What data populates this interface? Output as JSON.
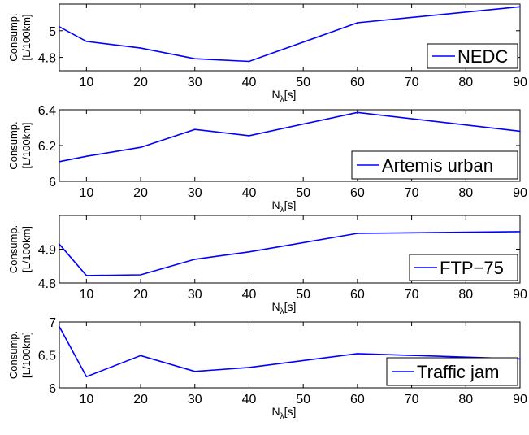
{
  "chart_data": [
    {
      "type": "line",
      "legend": "NEDC",
      "legend_location": "bottom-right",
      "ylabel": [
        "Consump.",
        "[L/100km]"
      ],
      "xlabel": {
        "main": "N",
        "sub": "λ",
        "unit": "[s]"
      },
      "xlim": [
        5,
        90
      ],
      "ylim": [
        4.7,
        5.2
      ],
      "xticks": [
        10,
        20,
        30,
        40,
        50,
        60,
        70,
        80,
        90
      ],
      "yticks": [
        4.8,
        5
      ],
      "x": [
        5,
        10,
        20,
        30,
        40,
        60,
        90
      ],
      "y": [
        5.03,
        4.92,
        4.87,
        4.79,
        4.77,
        5.06,
        5.18
      ],
      "color": "#0000ff"
    },
    {
      "type": "line",
      "legend": "Artemis urban",
      "legend_location": "bottom-right",
      "ylabel": [
        "Consump.",
        "[L/100km]"
      ],
      "xlabel": {
        "main": "N",
        "sub": "λ",
        "unit": "[s]"
      },
      "xlim": [
        5,
        90
      ],
      "ylim": [
        6,
        6.4
      ],
      "xticks": [
        10,
        20,
        30,
        40,
        50,
        60,
        70,
        80,
        90
      ],
      "yticks": [
        6,
        6.2,
        6.4
      ],
      "x": [
        5,
        10,
        20,
        30,
        40,
        60,
        90
      ],
      "y": [
        6.11,
        6.14,
        6.19,
        6.29,
        6.255,
        6.385,
        6.28
      ],
      "color": "#0000ff"
    },
    {
      "type": "line",
      "legend": "FTP−75",
      "legend_location": "bottom-right",
      "ylabel": [
        "Consump.",
        "[L/100km]"
      ],
      "xlabel": {
        "main": "N",
        "sub": "λ",
        "unit": "[s]"
      },
      "xlim": [
        5,
        90
      ],
      "ylim": [
        4.8,
        5
      ],
      "xticks": [
        10,
        20,
        30,
        40,
        50,
        60,
        70,
        80,
        90
      ],
      "yticks": [
        4.8,
        4.9
      ],
      "x": [
        5,
        10,
        20,
        30,
        40,
        60,
        90
      ],
      "y": [
        4.915,
        4.822,
        4.824,
        4.87,
        4.892,
        4.947,
        4.952
      ],
      "color": "#0000ff"
    },
    {
      "type": "line",
      "legend": "Traffic jam",
      "legend_location": "bottom-right",
      "ylabel": [
        "Consump.",
        "[L/100km]"
      ],
      "xlabel": {
        "main": "N",
        "sub": "λ",
        "unit": "[s]"
      },
      "xlim": [
        5,
        90
      ],
      "ylim": [
        6,
        7
      ],
      "xticks": [
        10,
        20,
        30,
        40,
        50,
        60,
        70,
        80,
        90
      ],
      "yticks": [
        6,
        6.5,
        7
      ],
      "x": [
        5,
        10,
        20,
        30,
        40,
        60,
        90
      ],
      "y": [
        6.93,
        6.17,
        6.49,
        6.25,
        6.31,
        6.52,
        6.44
      ],
      "color": "#0000ff"
    }
  ]
}
